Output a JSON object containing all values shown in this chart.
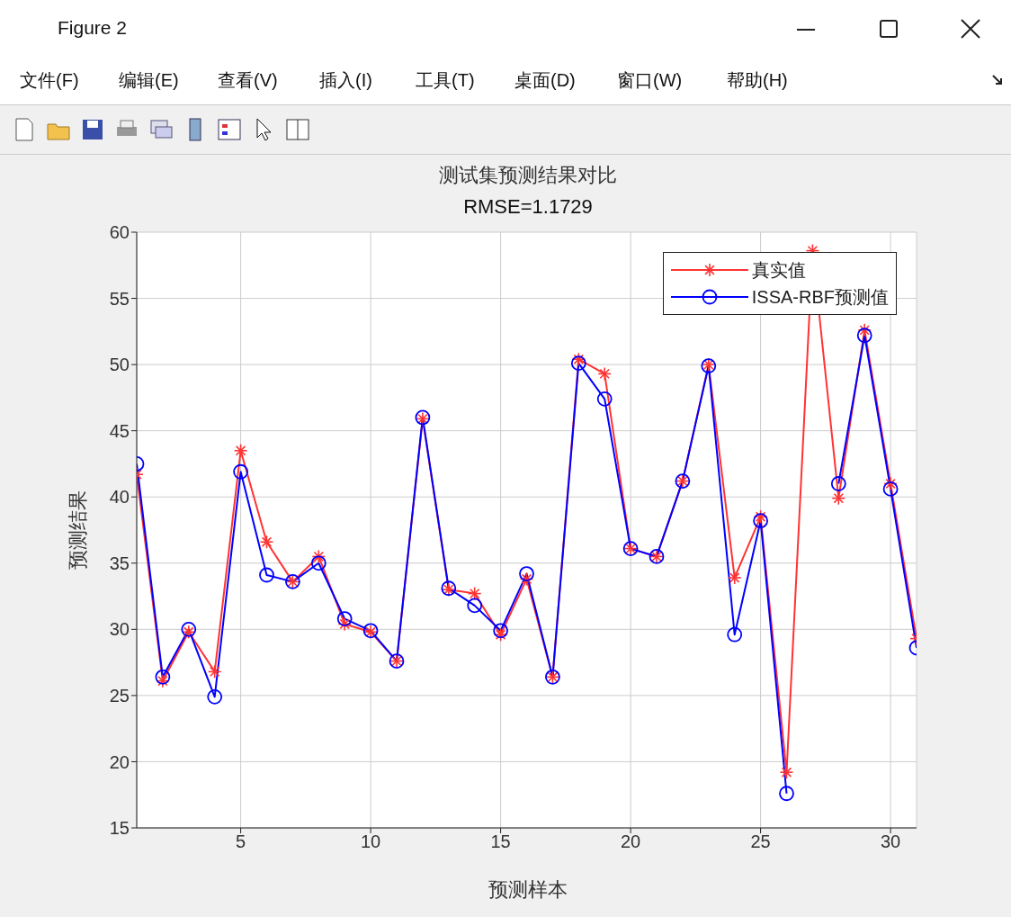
{
  "chart_data": {
    "type": "line",
    "title": "测试集预测结果对比",
    "subtitle": "RMSE=1.1729",
    "xlabel": "预测样本",
    "ylabel": "预测结果",
    "annotations": [
      "Figure 2",
      "文件(F)",
      "编辑(E)",
      "查看(V)",
      "插入(I)",
      "工具(T)",
      "桌面(D)",
      "窗口(W)",
      "帮助(H)"
    ],
    "x": [
      1,
      2,
      3,
      4,
      5,
      6,
      7,
      8,
      9,
      10,
      11,
      12,
      13,
      14,
      15,
      16,
      17,
      18,
      19,
      20,
      21,
      22,
      23,
      24,
      25,
      26,
      27,
      28,
      29,
      30,
      31
    ],
    "series": [
      {
        "name": "真实值",
        "color": "#ff3333",
        "marker": "cross",
        "values": [
          41.7,
          26.1,
          29.8,
          26.8,
          43.5,
          36.6,
          33.6,
          35.5,
          30.4,
          29.8,
          27.6,
          45.9,
          33.0,
          32.7,
          29.6,
          33.8,
          26.4,
          50.4,
          49.3,
          36.1,
          35.5,
          41.2,
          50.0,
          33.9,
          38.5,
          19.2,
          58.6,
          39.9,
          52.6,
          41.0,
          29.3
        ]
      },
      {
        "name": "ISSA-RBF预测值",
        "color": "#0000ff",
        "marker": "circle",
        "values": [
          42.5,
          26.4,
          30.0,
          24.9,
          41.9,
          34.1,
          33.6,
          35.0,
          30.8,
          29.9,
          27.6,
          46.0,
          33.1,
          31.8,
          29.9,
          34.2,
          26.4,
          50.1,
          47.4,
          36.1,
          35.5,
          41.2,
          49.9,
          29.6,
          38.2,
          17.6,
          null,
          41.0,
          52.2,
          40.6,
          28.6
        ]
      }
    ],
    "xlim": [
      1,
      31
    ],
    "xticks": [
      5,
      10,
      15,
      20,
      25,
      30
    ],
    "ylim": [
      15,
      60
    ],
    "yticks": [
      15,
      20,
      25,
      30,
      35,
      40,
      45,
      50,
      55,
      60
    ],
    "grid": true,
    "legend": "top right",
    "line_style": "solid"
  }
}
